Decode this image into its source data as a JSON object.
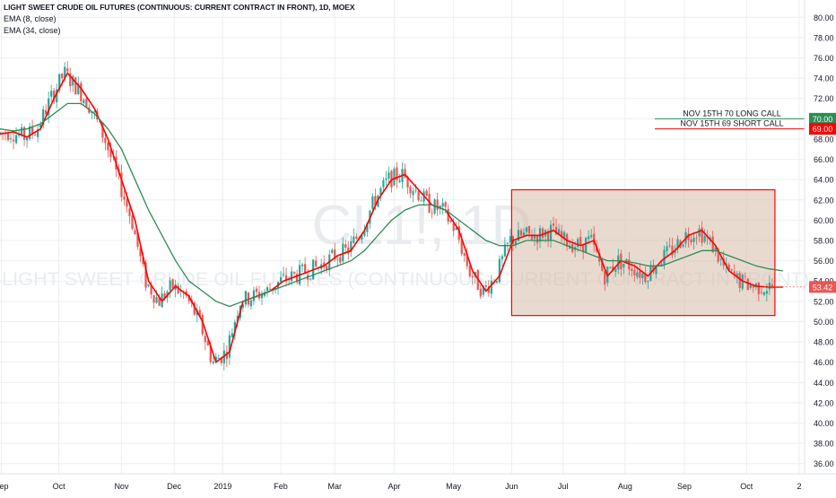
{
  "header": {
    "title": "LIGHT SWEET CRUDE OIL FUTURES (CONTINUOUS: CURRENT CONTRACT IN FRONT), 1D, MOEX",
    "indicator_1": "EMA (8, close)",
    "indicator_2": "EMA (34, close)"
  },
  "watermark": {
    "symbol": "CL1!, 1D",
    "description": "LIGHT SWEET CRUDE OIL FUTURES (CONTINUOUS: CURRENT CONTRACT IN FRONT)"
  },
  "chart_data": {
    "type": "line",
    "style": "candlestick",
    "ylim": [
      35,
      81
    ],
    "y_ticks": [
      36,
      38,
      40,
      42,
      44,
      46,
      48,
      50,
      52,
      54,
      56,
      58,
      60,
      62,
      64,
      66,
      68,
      70,
      72,
      74,
      76,
      78,
      80
    ],
    "y_tick_labels": [
      "36.00",
      "38.00",
      "40.00",
      "42.00",
      "44.00",
      "46.00",
      "48.00",
      "50.00",
      "52.00",
      "54.00",
      "56.00",
      "58.00",
      "60.00",
      "62.00",
      "64.00",
      "66.00",
      "68.00",
      "70.00",
      "72.00",
      "74.00",
      "76.00",
      "78.00",
      "80.00"
    ],
    "x_ticks": [
      "Sep",
      "Oct",
      "Nov",
      "Dec",
      "2019",
      "Feb",
      "Mar",
      "Apr",
      "May",
      "Jun",
      "Jul",
      "Aug",
      "Sep",
      "Oct",
      "2"
    ],
    "x_tick_pos": [
      0.5,
      21.8,
      45,
      64.5,
      82.5,
      104,
      124,
      146,
      168,
      189.5,
      208.5,
      231.5,
      253.5,
      276.5,
      296
    ],
    "x_range": [
      0,
      298
    ],
    "grid": true,
    "colors": {
      "up": "#26a69a",
      "down": "#ef5350",
      "ema_fast": "#ff0000",
      "ema_slow": "#2e8b57",
      "box_stroke": "#ff0000",
      "box_fill": "#d7bca8",
      "grid": "#eceff2",
      "axis_text": "#131722"
    },
    "series": [
      {
        "name": "EMA (8, close)",
        "x": [
          0,
          5,
          10,
          15,
          20,
          25,
          30,
          35,
          40,
          45,
          50,
          55,
          60,
          65,
          70,
          75,
          80,
          85,
          90,
          95,
          100,
          105,
          110,
          115,
          120,
          125,
          130,
          135,
          140,
          145,
          150,
          155,
          160,
          165,
          170,
          175,
          180,
          185,
          190,
          195,
          200,
          205,
          210,
          215,
          220,
          225,
          230,
          235,
          240,
          245,
          250,
          255,
          260,
          265,
          270,
          275,
          280,
          285,
          290
        ],
        "values": [
          68.5,
          68.7,
          68.2,
          69.0,
          72.0,
          74.5,
          73.0,
          71.0,
          68.0,
          64.0,
          60.0,
          54.0,
          52.0,
          53.5,
          52.5,
          50.0,
          46.0,
          47.0,
          52.0,
          52.5,
          53.0,
          54.0,
          54.5,
          55.0,
          55.5,
          56.5,
          57.0,
          59.0,
          62.0,
          64.0,
          64.5,
          63.0,
          61.5,
          61.0,
          59.0,
          55.0,
          53.0,
          54.5,
          58.0,
          58.5,
          58.5,
          59.0,
          58.0,
          57.5,
          58.0,
          54.5,
          56.0,
          55.5,
          54.5,
          56.0,
          57.0,
          58.5,
          59.0,
          57.5,
          55.0,
          54.0,
          53.5,
          53.4,
          53.4
        ]
      },
      {
        "name": "EMA (34, close)",
        "x": [
          0,
          5,
          10,
          15,
          20,
          25,
          30,
          35,
          40,
          45,
          50,
          55,
          60,
          65,
          70,
          75,
          80,
          85,
          90,
          95,
          100,
          105,
          110,
          115,
          120,
          125,
          130,
          135,
          140,
          145,
          150,
          155,
          160,
          165,
          170,
          175,
          180,
          185,
          190,
          195,
          200,
          205,
          210,
          215,
          220,
          225,
          230,
          235,
          240,
          245,
          250,
          255,
          260,
          265,
          270,
          275,
          280,
          285,
          290
        ],
        "values": [
          69.0,
          68.8,
          69.0,
          69.5,
          70.5,
          71.5,
          71.5,
          70.5,
          69.0,
          67.0,
          64.0,
          61.0,
          58.5,
          56.0,
          54.0,
          53.0,
          52.0,
          51.5,
          52.0,
          52.5,
          53.0,
          53.5,
          54.0,
          54.5,
          55.0,
          55.5,
          56.0,
          57.0,
          58.5,
          60.0,
          61.0,
          61.5,
          61.5,
          61.0,
          60.0,
          59.0,
          58.0,
          57.5,
          57.5,
          58.0,
          58.0,
          58.0,
          57.5,
          57.0,
          56.5,
          56.0,
          56.0,
          55.8,
          55.5,
          55.5,
          56.0,
          56.5,
          57.0,
          57.0,
          56.5,
          56.0,
          55.5,
          55.2,
          55.0
        ]
      }
    ],
    "highlight_box": {
      "x_start": 189.5,
      "x_end": 287,
      "y_low": 50.6,
      "y_high": 63.0
    },
    "current_price": {
      "value": 53.42,
      "label": "53.42"
    },
    "horizontal_lines": [
      {
        "label": "NOV 15TH 70 LONG CALL",
        "value": 70.0,
        "price_label": "70.00",
        "color": "#2e8b57"
      },
      {
        "label": "NOV 15TH 69 SHORT CALL",
        "value": 69.0,
        "price_label": "69.00",
        "color": "#ff0000"
      }
    ]
  }
}
